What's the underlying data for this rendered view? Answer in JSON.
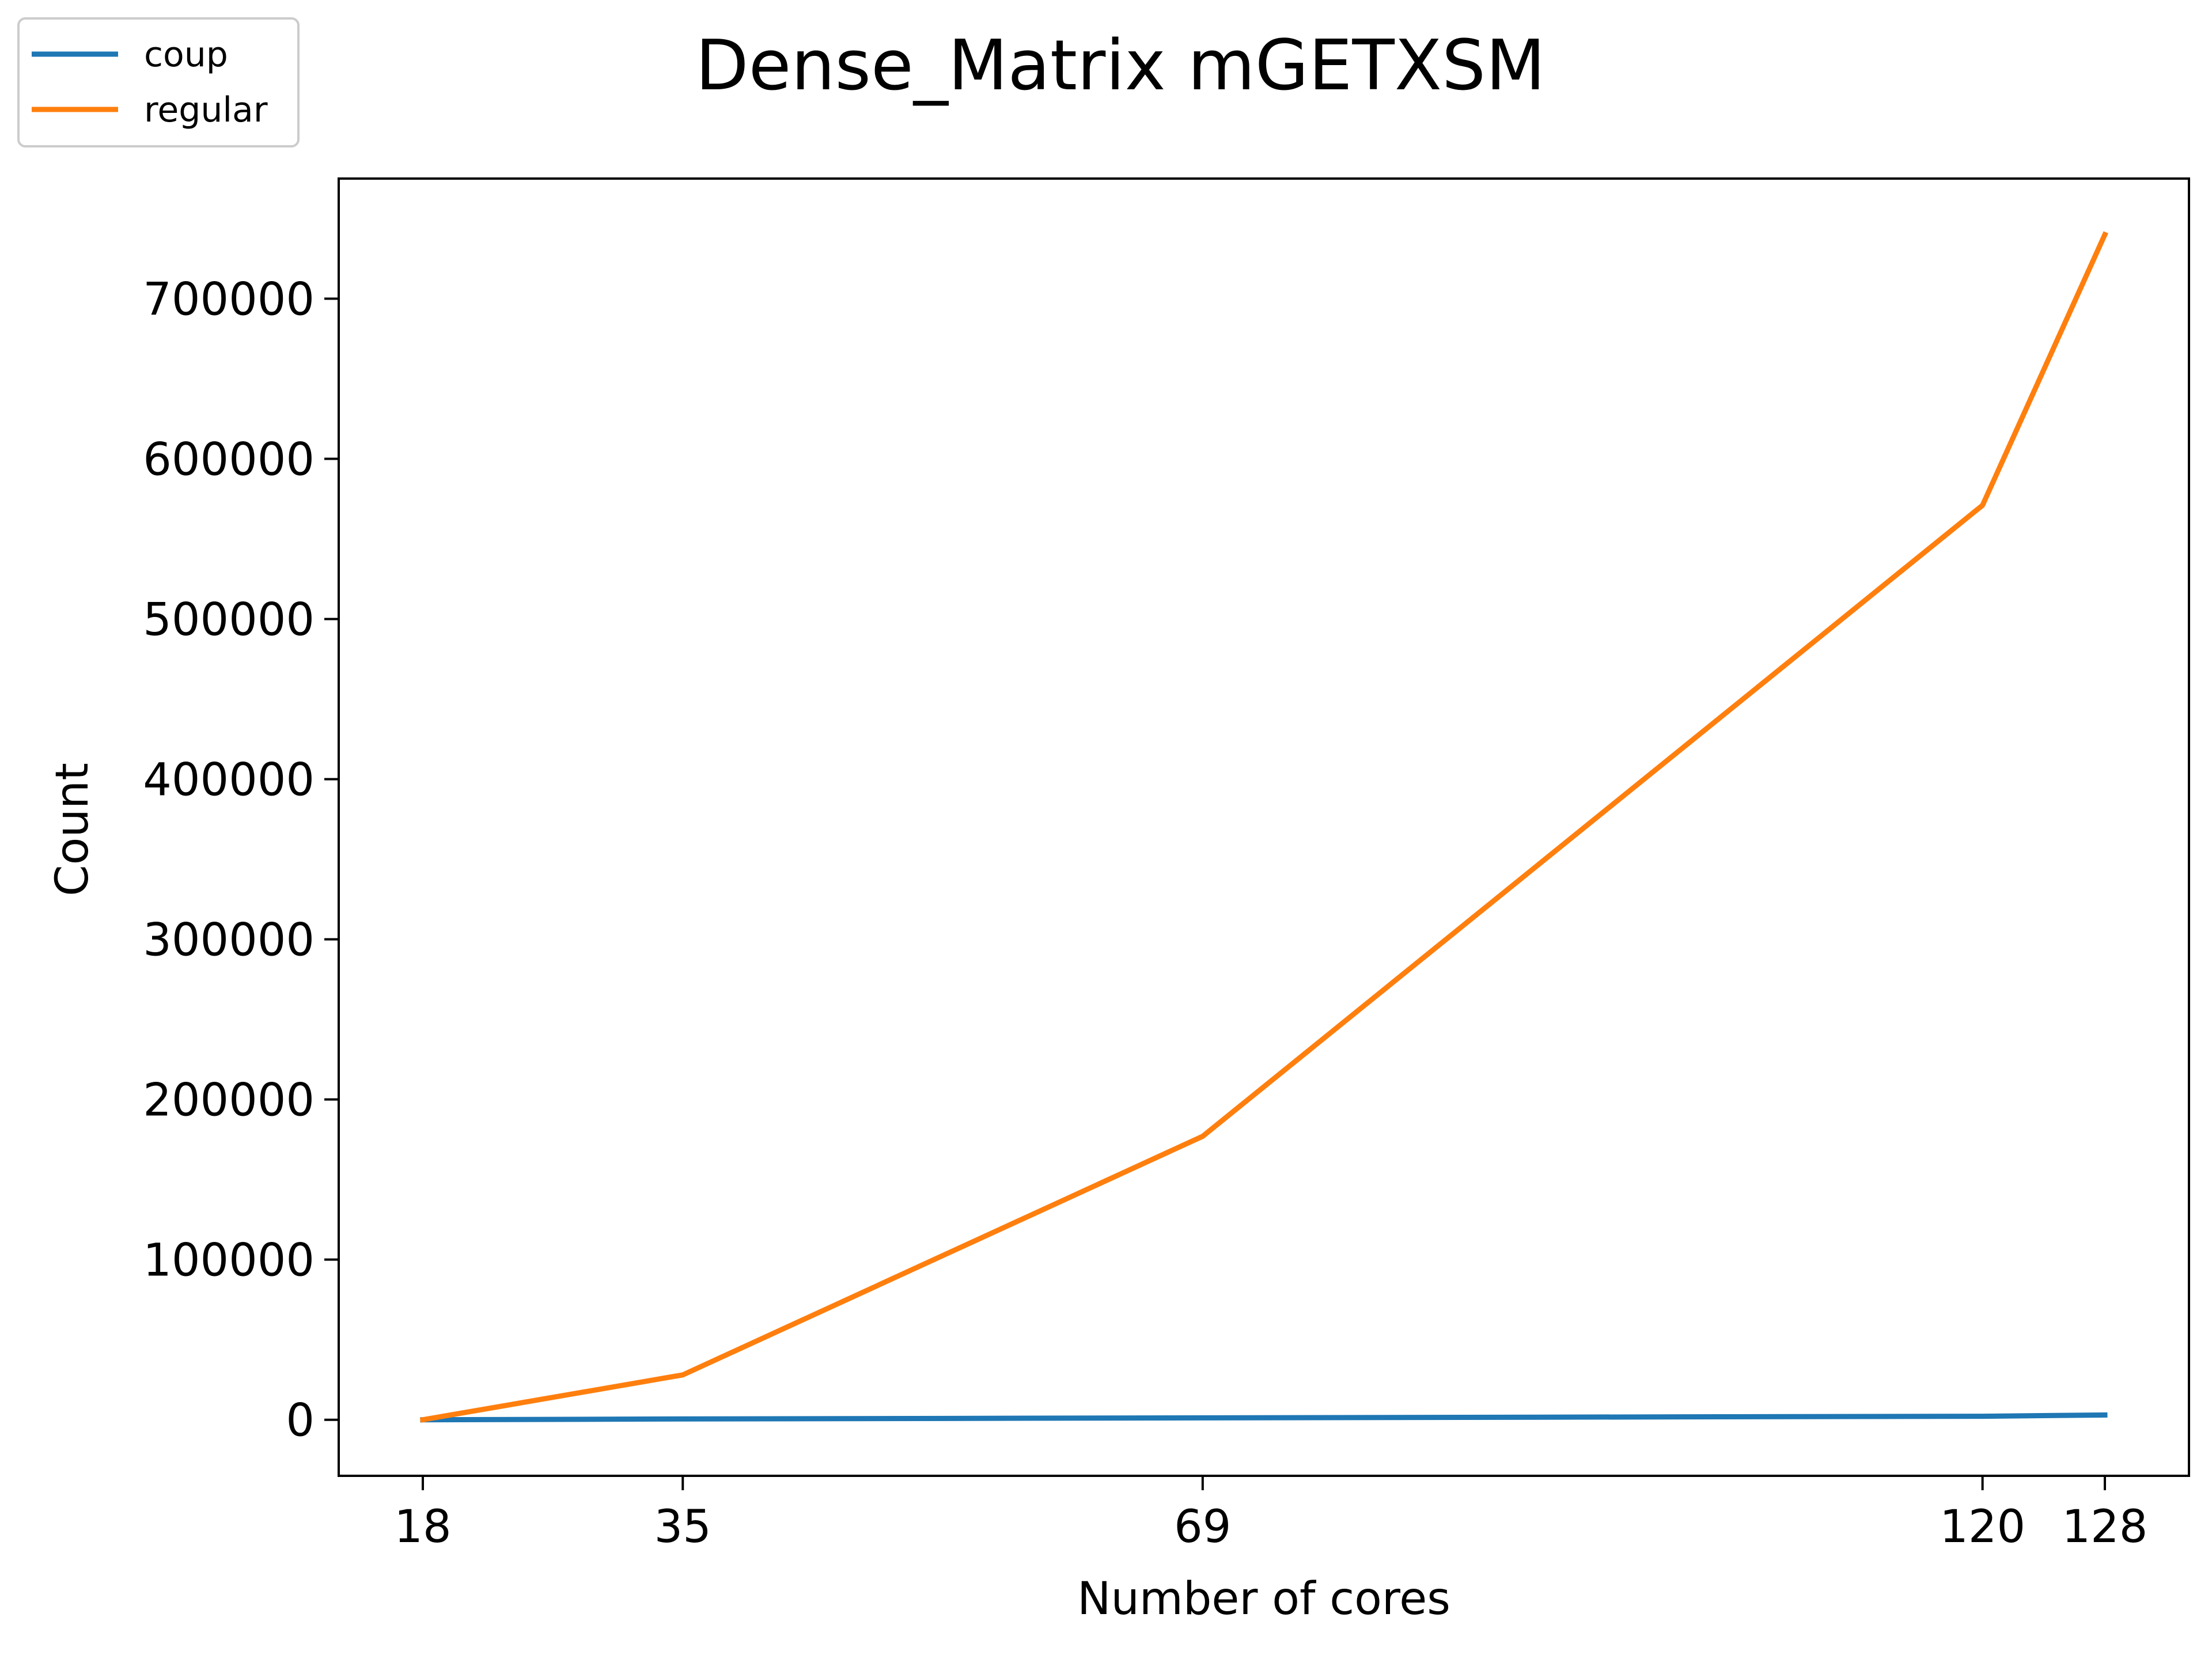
{
  "chart_data": {
    "type": "line",
    "title": "Dense_Matrix mGETXSM",
    "xlabel": "Number of cores",
    "ylabel": "Count",
    "x": [
      18,
      35,
      69,
      120,
      128
    ],
    "x_tick_labels": [
      "18",
      "35",
      "69",
      "120",
      "128"
    ],
    "xlim": [
      12.5,
      133.5
    ],
    "ylim": [
      -35000,
      775000
    ],
    "y_ticks": [
      0,
      100000,
      200000,
      300000,
      400000,
      500000,
      600000,
      700000
    ],
    "y_tick_labels": [
      "0",
      "100000",
      "200000",
      "300000",
      "400000",
      "500000",
      "600000",
      "700000"
    ],
    "grid": false,
    "legend_position": "top-left",
    "series": [
      {
        "name": "coup",
        "color": "#1f77b4",
        "values": [
          0,
          500,
          1200,
          2200,
          3000
        ]
      },
      {
        "name": "regular",
        "color": "#ff7f0e",
        "values": [
          0,
          28000,
          177000,
          571000,
          740000
        ]
      }
    ]
  }
}
